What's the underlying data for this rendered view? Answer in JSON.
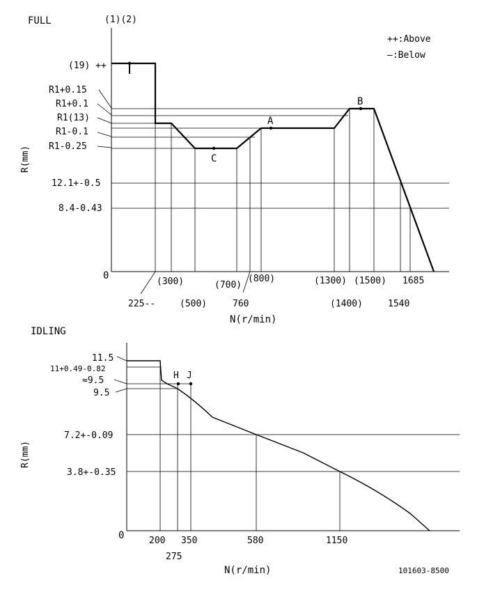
{
  "full": {
    "title": "FULL",
    "header": "(1)(2)",
    "legend": [
      "++:Above",
      "—:Below"
    ],
    "ylabel": "R(mm)",
    "xlabel": "N(r/min)",
    "zero": "0",
    "y_labels": [
      "(19) ++",
      "R1+0.15",
      "R1+0.1",
      "R1(13)",
      "R1-0.1",
      "R1-0.25",
      "12.1+-0.5",
      "8.4-0.43"
    ],
    "x_labels": [
      "225--",
      "(300)",
      "(500)",
      "(700)",
      "760",
      "(800)",
      "(1300)",
      "(1400)",
      "(1500)",
      "1540",
      "1685"
    ],
    "points": [
      "I",
      "A",
      "B",
      "C"
    ]
  },
  "idling": {
    "title": "IDLING",
    "ylabel": "R(mm)",
    "xlabel": "N(r/min)",
    "zero": "0",
    "y_labels": [
      "11.5",
      "11+0.49-0.82",
      "≈9.5",
      "9.5",
      "7.2+-0.09",
      "3.8+-0.35"
    ],
    "x_labels": [
      "200",
      "275",
      "350",
      "580",
      "1150"
    ],
    "points": [
      "H",
      "J"
    ]
  },
  "footer": "101603-8500"
}
